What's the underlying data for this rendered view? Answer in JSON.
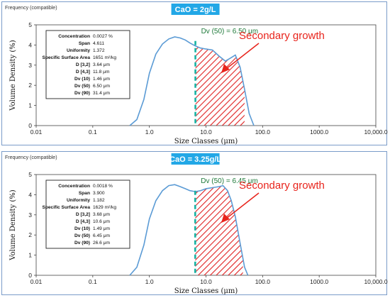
{
  "accent_color": "#22a7e6",
  "curve_color": "#5b9bd5",
  "median_color": "#16b3a3",
  "hatch_color": "#e02020",
  "annotation_color": "#e8241c",
  "chart_data": [
    {
      "type": "line",
      "frame_label": "Frequency (compatible)",
      "title": "CaO = 2g/L",
      "xlabel": "Size Classes (μm)",
      "ylabel": "Volume Density (%)",
      "xscale": "log",
      "xlim": [
        0.01,
        10000
      ],
      "ylim": [
        0,
        5
      ],
      "x_ticks": [
        "0.01",
        "0.1",
        "1.0",
        "10.0",
        "100.0",
        "1000.0",
        "10,000.0"
      ],
      "y_ticks": [
        "0",
        "1",
        "2",
        "3",
        "4",
        "5"
      ],
      "median_label": "Dv (50) = 6.50 μm",
      "median_x": 6.5,
      "annotation": "Secondary growth",
      "hatched_range": [
        6.5,
        48
      ],
      "stats": [
        {
          "label": "Concentration",
          "value": "0.0027 %"
        },
        {
          "label": "Span",
          "value": "4.611"
        },
        {
          "label": "Uniformity",
          "value": "1.372"
        },
        {
          "label": "Specific Surface Area",
          "value": "1651 m²/kg"
        },
        {
          "label": "D [3,2]",
          "value": "3.64 μm"
        },
        {
          "label": "D [4,3]",
          "value": "11.8 μm"
        },
        {
          "label": "Dv (10)",
          "value": "1.46 μm"
        },
        {
          "label": "Dv (50)",
          "value": "6.50 μm"
        },
        {
          "label": "Dv (90)",
          "value": "31.4 μm"
        }
      ],
      "series": [
        {
          "x": [
            0.45,
            0.6,
            0.8,
            1.0,
            1.3,
            1.7,
            2.2,
            2.8,
            3.5,
            4.3,
            5.2,
            6.5,
            8.0,
            10,
            13,
            17,
            22,
            27,
            33,
            40,
            48,
            58,
            70
          ],
          "y": [
            0,
            0.3,
            1.3,
            2.6,
            3.55,
            4.05,
            4.3,
            4.4,
            4.35,
            4.25,
            4.1,
            3.95,
            3.85,
            3.8,
            3.75,
            3.45,
            3.2,
            3.35,
            3.5,
            2.9,
            1.8,
            0.6,
            0
          ]
        }
      ]
    },
    {
      "type": "line",
      "frame_label": "Frequency (compatible)",
      "title": "CaO = 3.25g/L",
      "xlabel": "Size Classes (μm)",
      "ylabel": "Volume Density (%)",
      "xscale": "log",
      "xlim": [
        0.01,
        10000
      ],
      "ylim": [
        0,
        5
      ],
      "x_ticks": [
        "0.01",
        "0.1",
        "1.0",
        "10.0",
        "100.0",
        "1000.0",
        "10,000.0"
      ],
      "y_ticks": [
        "0",
        "1",
        "2",
        "3",
        "4",
        "5"
      ],
      "median_label": "Dv (50) = 6.45 μm",
      "median_x": 6.45,
      "annotation": "Secondary growth",
      "hatched_range": [
        6.45,
        45
      ],
      "stats": [
        {
          "label": "Concentration",
          "value": "0.0018 %"
        },
        {
          "label": "Span",
          "value": "3.900"
        },
        {
          "label": "Uniformity",
          "value": "1.182"
        },
        {
          "label": "Specific Surface Area",
          "value": "1629 m²/kg"
        },
        {
          "label": "D [3,2]",
          "value": "3.68 μm"
        },
        {
          "label": "D [4,3]",
          "value": "10.6 μm"
        },
        {
          "label": "Dv (10)",
          "value": "1.49 μm"
        },
        {
          "label": "Dv (50)",
          "value": "6.45 μm"
        },
        {
          "label": "Dv (90)",
          "value": "26.6 μm"
        }
      ],
      "series": [
        {
          "x": [
            0.45,
            0.6,
            0.8,
            1.0,
            1.3,
            1.7,
            2.2,
            2.8,
            3.5,
            4.3,
            5.2,
            6.5,
            8.0,
            10,
            13,
            17,
            20,
            24,
            28,
            33,
            40,
            48,
            55
          ],
          "y": [
            0,
            0.4,
            1.5,
            2.8,
            3.7,
            4.2,
            4.45,
            4.5,
            4.4,
            4.3,
            4.2,
            4.15,
            4.2,
            4.3,
            4.35,
            4.4,
            4.45,
            4.2,
            3.7,
            2.9,
            1.6,
            0.4,
            0
          ]
        }
      ]
    }
  ]
}
